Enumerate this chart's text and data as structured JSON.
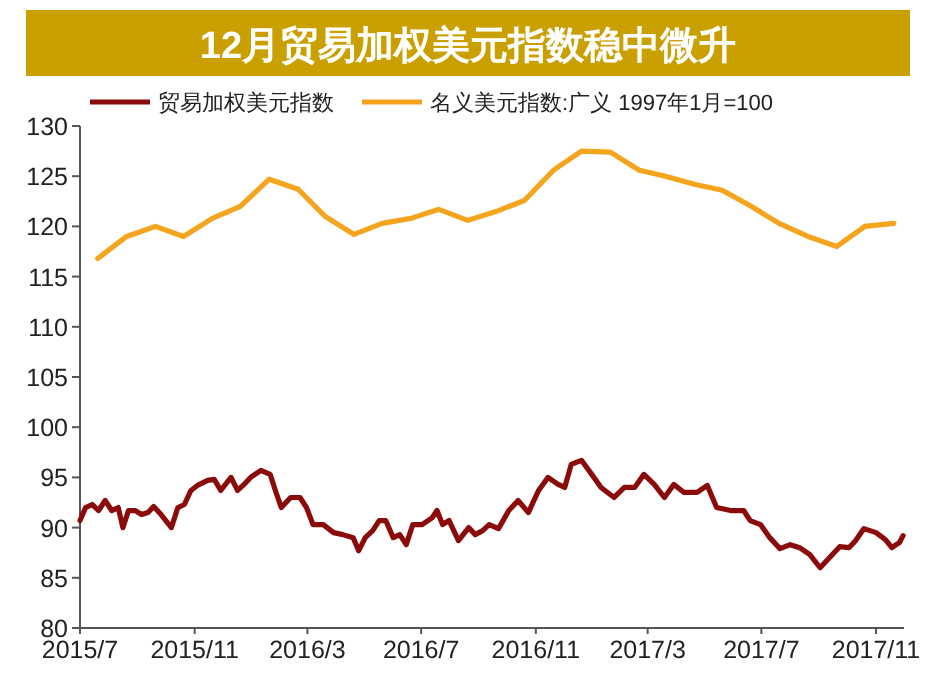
{
  "chart_data": {
    "type": "line",
    "title": "12月贸易加权美元指数稳中微升",
    "legend": "top",
    "xlim": [
      "2015-07-01",
      "2017-12-01"
    ],
    "xticks": [
      {
        "value": "2015-07-01",
        "label": "2015/7"
      },
      {
        "value": "2015-11-01",
        "label": "2015/11"
      },
      {
        "value": "2016-03-01",
        "label": "2016/3"
      },
      {
        "value": "2016-07-01",
        "label": "2016/7"
      },
      {
        "value": "2016-11-01",
        "label": "2016/11"
      },
      {
        "value": "2017-03-01",
        "label": "2017/3"
      },
      {
        "value": "2017-07-01",
        "label": "2017/7"
      },
      {
        "value": "2017-11-01",
        "label": "2017/11"
      }
    ],
    "ylim": [
      80,
      130
    ],
    "yticks": [
      80,
      85,
      90,
      95,
      100,
      105,
      110,
      115,
      120,
      125,
      130
    ],
    "series": [
      {
        "name": "贸易加权美元指数",
        "color": "#8b0a0a",
        "x": [
          "2015-07-01",
          "2015-07-07",
          "2015-07-14",
          "2015-07-21",
          "2015-07-28",
          "2015-08-04",
          "2015-08-11",
          "2015-08-16",
          "2015-08-22",
          "2015-08-29",
          "2015-09-05",
          "2015-09-12",
          "2015-09-18",
          "2015-09-26",
          "2015-10-07",
          "2015-10-14",
          "2015-10-21",
          "2015-10-28",
          "2015-11-04",
          "2015-11-15",
          "2015-11-22",
          "2015-11-29",
          "2015-12-10",
          "2015-12-17",
          "2015-12-24",
          "2015-12-31",
          "2016-01-11",
          "2016-01-21",
          "2016-01-28",
          "2016-02-02",
          "2016-02-12",
          "2016-02-22",
          "2016-02-29",
          "2016-03-07",
          "2016-03-18",
          "2016-03-29",
          "2016-04-08",
          "2016-04-19",
          "2016-04-25",
          "2016-05-02",
          "2016-05-10",
          "2016-05-17",
          "2016-05-24",
          "2016-06-01",
          "2016-06-08",
          "2016-06-15",
          "2016-06-22",
          "2016-07-02",
          "2016-07-13",
          "2016-07-18",
          "2016-07-24",
          "2016-07-31",
          "2016-08-10",
          "2016-08-21",
          "2016-08-28",
          "2016-09-05",
          "2016-09-12",
          "2016-09-22",
          "2016-10-03",
          "2016-10-13",
          "2016-10-24",
          "2016-11-04",
          "2016-11-14",
          "2016-11-25",
          "2016-12-02",
          "2016-12-09",
          "2016-12-20",
          "2016-12-31",
          "2017-01-10",
          "2017-01-24",
          "2017-02-04",
          "2017-02-15",
          "2017-02-25",
          "2017-03-08",
          "2017-03-19",
          "2017-03-29",
          "2017-04-09",
          "2017-04-23",
          "2017-05-04",
          "2017-05-14",
          "2017-05-29",
          "2017-06-12",
          "2017-06-19",
          "2017-06-30",
          "2017-07-10",
          "2017-07-21",
          "2017-08-01",
          "2017-08-11",
          "2017-08-22",
          "2017-09-02",
          "2017-09-12",
          "2017-09-23",
          "2017-10-03",
          "2017-10-10",
          "2017-10-19",
          "2017-11-01",
          "2017-11-11",
          "2017-11-18",
          "2017-11-26",
          "2017-11-30"
        ],
        "values": [
          90.7,
          92,
          92.3,
          91.7,
          92.7,
          91.7,
          92,
          90,
          91.7,
          91.7,
          91.3,
          91.5,
          92.1,
          91.3,
          90,
          92,
          92.3,
          93.7,
          94.2,
          94.7,
          94.8,
          93.7,
          95,
          93.7,
          94.3,
          95,
          95.7,
          95.3,
          93.3,
          92,
          93,
          93,
          92,
          90.3,
          90.3,
          89.5,
          89.3,
          89,
          87.7,
          89,
          89.7,
          90.7,
          90.7,
          89,
          89.3,
          88.3,
          90.3,
          90.3,
          91,
          91.7,
          90.3,
          90.7,
          88.7,
          90,
          89.3,
          89.7,
          90.3,
          89.9,
          91.7,
          92.7,
          91.5,
          93.7,
          95,
          94.3,
          94,
          96.3,
          96.7,
          95.3,
          94,
          93,
          94,
          94,
          95.3,
          94.3,
          93,
          94.3,
          93.5,
          93.5,
          94.2,
          92,
          91.7,
          91.7,
          90.7,
          90.3,
          89,
          87.9,
          88.3,
          88,
          87.3,
          86,
          87,
          88.1,
          88,
          88.7,
          89.9,
          89.5,
          88.8,
          88,
          88.5,
          89.2
        ]
      },
      {
        "name": "名义美元指数:广义 1997年1月=100",
        "color": "#f5a41e",
        "x": [
          "2015-07-20",
          "2015-08-20",
          "2015-09-20",
          "2015-10-20",
          "2015-11-20",
          "2015-12-20",
          "2016-01-20",
          "2016-02-20",
          "2016-03-20",
          "2016-04-20",
          "2016-05-20",
          "2016-06-20",
          "2016-07-20",
          "2016-08-20",
          "2016-09-20",
          "2016-10-20",
          "2016-11-20",
          "2016-12-20",
          "2017-01-20",
          "2017-02-20",
          "2017-03-20",
          "2017-04-20",
          "2017-05-20",
          "2017-06-20",
          "2017-07-20",
          "2017-08-20",
          "2017-09-20",
          "2017-10-20",
          "2017-11-20"
        ],
        "values": [
          116.8,
          119,
          120,
          119,
          120.8,
          122,
          124.7,
          123.7,
          121,
          119.2,
          120.3,
          120.8,
          121.7,
          120.6,
          121.5,
          122.6,
          125.6,
          127.5,
          127.4,
          125.6,
          125,
          124.2,
          123.6,
          122,
          120.3,
          119,
          118,
          120,
          120.3
        ]
      }
    ]
  }
}
